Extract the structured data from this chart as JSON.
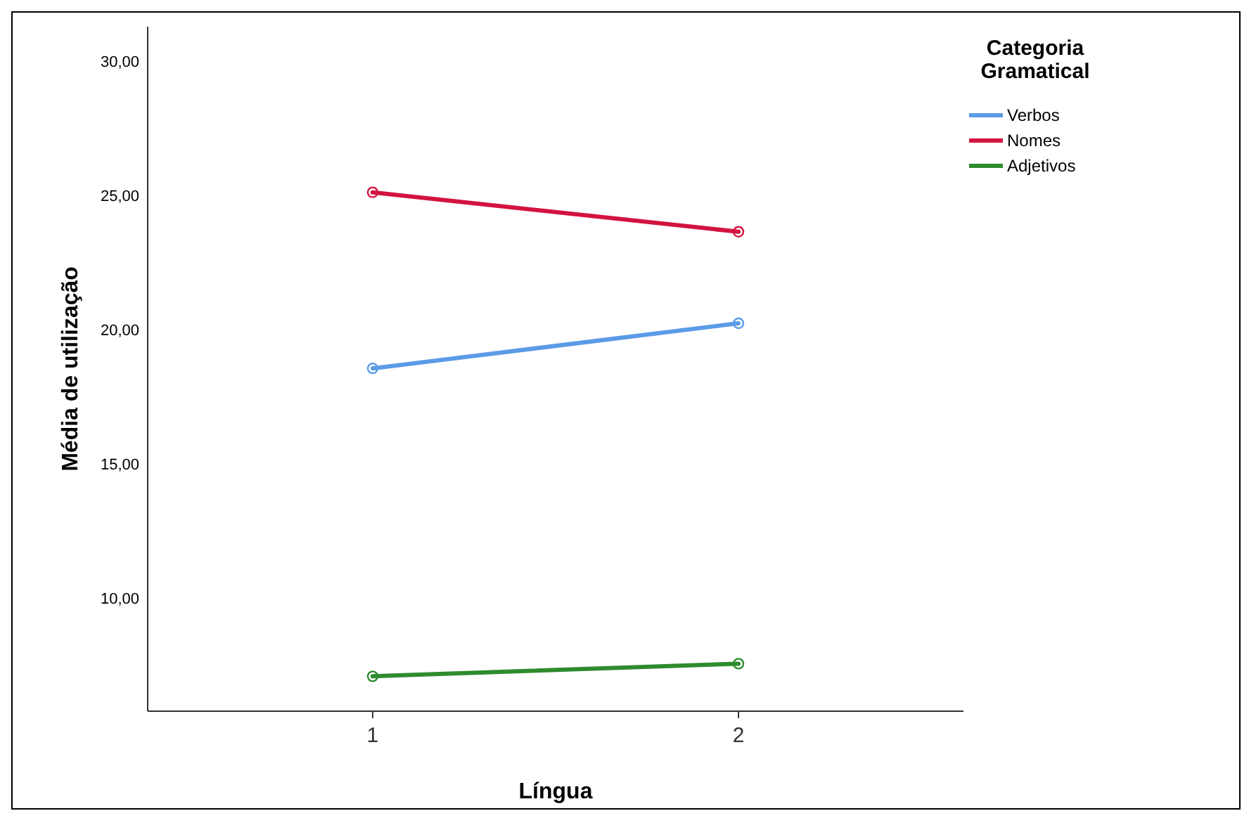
{
  "chart_data": {
    "type": "line",
    "xlabel": "Língua",
    "ylabel": "Média de utilização",
    "legend_title": "Categoria Gramatical",
    "categories": [
      "1",
      "2"
    ],
    "series": [
      {
        "name": "Verbos",
        "color": "#5b9be6",
        "values": [
          18.57,
          20.25
        ]
      },
      {
        "name": "Nomes",
        "color": "#d3133f",
        "values": [
          25.13,
          23.66
        ]
      },
      {
        "name": "Adjetivos",
        "color": "#2e8b2e",
        "values": [
          7.1,
          7.57
        ]
      }
    ],
    "ylim": [
      5.8,
      31.3
    ],
    "yticks": [
      {
        "value": 10,
        "label": "10,00"
      },
      {
        "value": 15,
        "label": "15,00"
      },
      {
        "value": 20,
        "label": "20,00"
      },
      {
        "value": 25,
        "label": "25,00"
      },
      {
        "value": 30,
        "label": "30,00"
      }
    ],
    "grid": false,
    "legend": "top right",
    "marker": "circle",
    "line_style": "solid"
  }
}
